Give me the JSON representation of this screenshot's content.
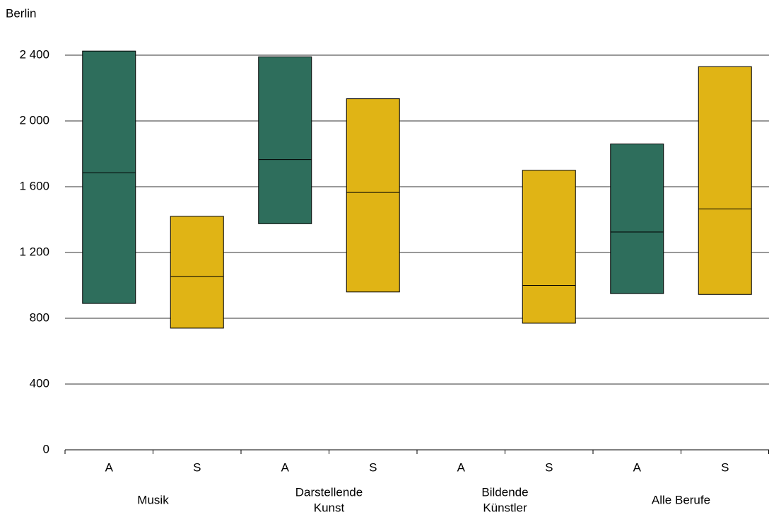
{
  "chart_data": {
    "type": "range_median",
    "y_label": "Berlin",
    "ylim": [
      0,
      2500
    ],
    "yticks": [
      0,
      400,
      800,
      {
        "value": 1200,
        "label": "1 200"
      },
      {
        "value": 1600,
        "label": "1 600"
      },
      {
        "value": 2000,
        "label": "2 000"
      },
      {
        "value": 2400,
        "label": "2 400"
      }
    ],
    "grid": true,
    "groups": [
      {
        "label": [
          "Musik"
        ],
        "bars": [
          {
            "label": "A",
            "color": "#2e6e5c",
            "low": 890,
            "median": 1685,
            "high": 2425
          },
          {
            "label": "S",
            "color": "#e0b415",
            "low": 740,
            "median": 1055,
            "high": 1420
          }
        ]
      },
      {
        "label": [
          "Darstellende",
          "Kunst"
        ],
        "bars": [
          {
            "label": "A",
            "color": "#2e6e5c",
            "low": 1375,
            "median": 1765,
            "high": 2390
          },
          {
            "label": "S",
            "color": "#e0b415",
            "low": 960,
            "median": 1565,
            "high": 2135
          }
        ]
      },
      {
        "label": [
          "Bildende",
          "Künstler"
        ],
        "bars": [
          {
            "label": "A",
            "color": "#2e6e5c",
            "low": null,
            "median": null,
            "high": null
          },
          {
            "label": "S",
            "color": "#e0b415",
            "low": 770,
            "median": 1000,
            "high": 1700
          }
        ]
      },
      {
        "label": [
          "Alle Berufe"
        ],
        "bars": [
          {
            "label": "A",
            "color": "#2e6e5c",
            "low": 950,
            "median": 1325,
            "high": 1860
          },
          {
            "label": "S",
            "color": "#e0b415",
            "low": 945,
            "median": 1465,
            "high": 2330
          }
        ]
      }
    ]
  }
}
